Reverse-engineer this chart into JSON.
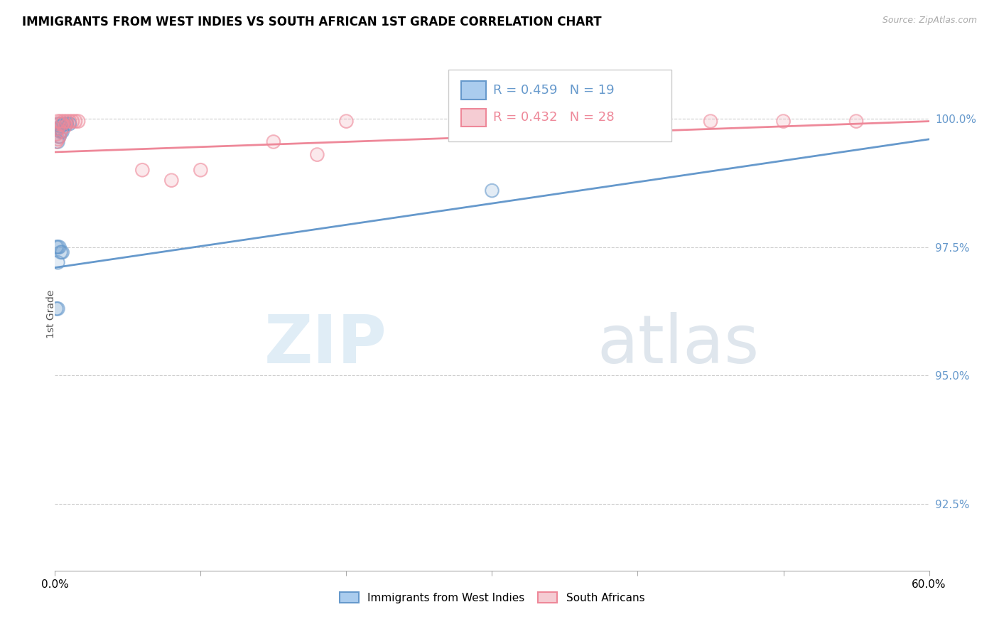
{
  "title": "IMMIGRANTS FROM WEST INDIES VS SOUTH AFRICAN 1ST GRADE CORRELATION CHART",
  "source": "Source: ZipAtlas.com",
  "ylabel": "1st Grade",
  "ylabel_right_labels": [
    "100.0%",
    "97.5%",
    "95.0%",
    "92.5%"
  ],
  "ylabel_right_values": [
    1.0,
    0.975,
    0.95,
    0.925
  ],
  "x_min": 0.0,
  "x_max": 0.6,
  "y_min": 0.912,
  "y_max": 1.012,
  "legend_blue_R": "R = 0.459",
  "legend_blue_N": "N = 19",
  "legend_pink_R": "R = 0.432",
  "legend_pink_N": "N = 28",
  "legend_label_blue": "Immigrants from West Indies",
  "legend_label_pink": "South Africans",
  "blue_color": "#6699cc",
  "pink_color": "#ee8899",
  "blue_scatter": [
    [
      0.003,
      0.999
    ],
    [
      0.006,
      0.999
    ],
    [
      0.008,
      0.999
    ],
    [
      0.004,
      0.9985
    ],
    [
      0.01,
      0.999
    ],
    [
      0.002,
      0.998
    ],
    [
      0.005,
      0.9975
    ],
    [
      0.003,
      0.9965
    ],
    [
      0.002,
      0.9955
    ],
    [
      0.004,
      0.9975
    ],
    [
      0.001,
      0.975
    ],
    [
      0.002,
      0.975
    ],
    [
      0.003,
      0.975
    ],
    [
      0.004,
      0.974
    ],
    [
      0.005,
      0.974
    ],
    [
      0.002,
      0.972
    ],
    [
      0.001,
      0.963
    ],
    [
      0.002,
      0.963
    ],
    [
      0.3,
      0.986
    ]
  ],
  "pink_scatter": [
    [
      0.002,
      0.9995
    ],
    [
      0.004,
      0.9995
    ],
    [
      0.006,
      0.9995
    ],
    [
      0.008,
      0.9995
    ],
    [
      0.01,
      0.9995
    ],
    [
      0.012,
      0.9995
    ],
    [
      0.014,
      0.9995
    ],
    [
      0.016,
      0.9995
    ],
    [
      0.003,
      0.999
    ],
    [
      0.005,
      0.999
    ],
    [
      0.007,
      0.9985
    ],
    [
      0.002,
      0.998
    ],
    [
      0.004,
      0.9975
    ],
    [
      0.001,
      0.997
    ],
    [
      0.003,
      0.9965
    ],
    [
      0.002,
      0.996
    ],
    [
      0.001,
      0.9955
    ],
    [
      0.15,
      0.9955
    ],
    [
      0.18,
      0.993
    ],
    [
      0.1,
      0.99
    ],
    [
      0.2,
      0.9995
    ],
    [
      0.3,
      0.9995
    ],
    [
      0.4,
      0.9995
    ],
    [
      0.45,
      0.9995
    ],
    [
      0.5,
      0.9995
    ],
    [
      0.55,
      0.9995
    ],
    [
      0.08,
      0.988
    ],
    [
      0.06,
      0.99
    ]
  ],
  "blue_line_x": [
    0.0,
    0.6
  ],
  "blue_line_y": [
    0.971,
    0.996
  ],
  "pink_line_x": [
    0.0,
    0.6
  ],
  "pink_line_y": [
    0.9935,
    0.9995
  ],
  "watermark_zip": "ZIP",
  "watermark_atlas": "atlas",
  "grid_color": "#cccccc",
  "scatter_size": 180,
  "scatter_alpha": 0.5,
  "scatter_fill_alpha": 0.18
}
